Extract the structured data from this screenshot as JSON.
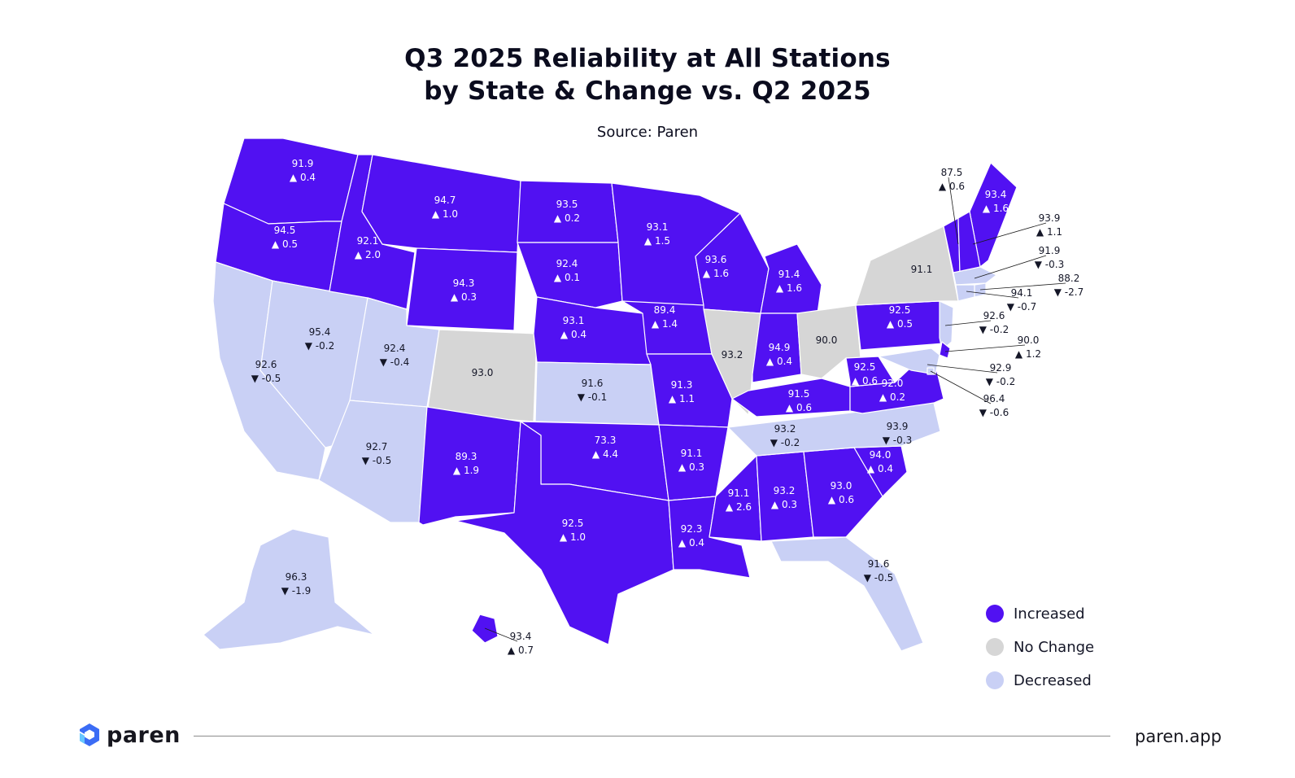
{
  "title_line1": "Q3 2025 Reliability at All Stations",
  "title_line2": "by State & Change vs. Q2 2025",
  "source": "Source: Paren",
  "colors": {
    "increased": "#5111f2",
    "no_change": "#d6d6d6",
    "decreased": "#c9d0f5",
    "text_on_dark": "#ffffff",
    "text_on_light": "#141627"
  },
  "legend": [
    {
      "label": "Increased",
      "category": "increased"
    },
    {
      "label": "No Change",
      "category": "no_change"
    },
    {
      "label": "Decreased",
      "category": "decreased"
    }
  ],
  "states": [
    {
      "name": "Washington",
      "value": "91.9",
      "change": "▲ 0.4",
      "category": "increased"
    },
    {
      "name": "Oregon",
      "value": "94.5",
      "change": "▲ 0.5",
      "category": "increased"
    },
    {
      "name": "California",
      "value": "92.6",
      "change": "▼ -0.5",
      "category": "decreased"
    },
    {
      "name": "Nevada",
      "value": "95.4",
      "change": "▼ -0.2",
      "category": "decreased"
    },
    {
      "name": "Idaho",
      "value": "92.1",
      "change": "▲ 2.0",
      "category": "increased"
    },
    {
      "name": "Montana",
      "value": "94.7",
      "change": "▲ 1.0",
      "category": "increased"
    },
    {
      "name": "Wyoming",
      "value": "94.3",
      "change": "▲ 0.3",
      "category": "increased"
    },
    {
      "name": "Utah",
      "value": "92.4",
      "change": "▼ -0.4",
      "category": "decreased"
    },
    {
      "name": "Arizona",
      "value": "92.7",
      "change": "▼ -0.5",
      "category": "decreased"
    },
    {
      "name": "Colorado",
      "value": "93.0",
      "change": "",
      "category": "no_change"
    },
    {
      "name": "New Mexico",
      "value": "89.3",
      "change": "▲ 1.9",
      "category": "increased"
    },
    {
      "name": "North Dakota",
      "value": "93.5",
      "change": "▲ 0.2",
      "category": "increased"
    },
    {
      "name": "South Dakota",
      "value": "92.4",
      "change": "▲ 0.1",
      "category": "increased"
    },
    {
      "name": "Nebraska",
      "value": "93.1",
      "change": "▲ 0.4",
      "category": "increased"
    },
    {
      "name": "Kansas",
      "value": "91.6",
      "change": "▼ -0.1",
      "category": "decreased"
    },
    {
      "name": "Oklahoma",
      "value": "73.3",
      "change": "▲ 4.4",
      "category": "increased"
    },
    {
      "name": "Texas",
      "value": "92.5",
      "change": "▲ 1.0",
      "category": "increased"
    },
    {
      "name": "Minnesota",
      "value": "93.1",
      "change": "▲ 1.5",
      "category": "increased"
    },
    {
      "name": "Iowa",
      "value": "89.4",
      "change": "▲ 1.4",
      "category": "increased"
    },
    {
      "name": "Missouri",
      "value": "91.3",
      "change": "▲ 1.1",
      "category": "increased"
    },
    {
      "name": "Arkansas",
      "value": "91.1",
      "change": "▲ 0.3",
      "category": "increased"
    },
    {
      "name": "Louisiana",
      "value": "92.3",
      "change": "▲ 0.4",
      "category": "increased"
    },
    {
      "name": "Wisconsin",
      "value": "93.6",
      "change": "▲ 1.6",
      "category": "increased"
    },
    {
      "name": "Illinois",
      "value": "93.2",
      "change": "",
      "category": "no_change"
    },
    {
      "name": "Michigan",
      "value": "91.4",
      "change": "▲ 1.6",
      "category": "increased"
    },
    {
      "name": "Indiana",
      "value": "94.9",
      "change": "▲ 0.4",
      "category": "increased"
    },
    {
      "name": "Ohio",
      "value": "90.0",
      "change": "",
      "category": "no_change"
    },
    {
      "name": "Kentucky",
      "value": "91.5",
      "change": "▲ 0.6",
      "category": "increased"
    },
    {
      "name": "Tennessee",
      "value": "93.2",
      "change": "▼ -0.2",
      "category": "decreased"
    },
    {
      "name": "Mississippi",
      "value": "91.1",
      "change": "▲ 2.6",
      "category": "increased"
    },
    {
      "name": "Alabama",
      "value": "93.2",
      "change": "▲ 0.3",
      "category": "increased"
    },
    {
      "name": "Georgia",
      "value": "93.0",
      "change": "▲ 0.6",
      "category": "increased"
    },
    {
      "name": "Florida",
      "value": "91.6",
      "change": "▼ -0.5",
      "category": "decreased"
    },
    {
      "name": "South Carolina",
      "value": "94.0",
      "change": "▲ 0.4",
      "category": "increased"
    },
    {
      "name": "North Carolina",
      "value": "93.9",
      "change": "▼ -0.3",
      "category": "decreased"
    },
    {
      "name": "Virginia",
      "value": "92.0",
      "change": "▲ 0.2",
      "category": "increased"
    },
    {
      "name": "West Virginia",
      "value": "92.5",
      "change": "▲ 0.6",
      "category": "increased"
    },
    {
      "name": "Pennsylvania",
      "value": "92.5",
      "change": "▲ 0.5",
      "category": "increased"
    },
    {
      "name": "New York",
      "value": "91.1",
      "change": "",
      "category": "no_change"
    },
    {
      "name": "Maine",
      "value": "93.4",
      "change": "▲ 1.6",
      "category": "increased"
    },
    {
      "name": "Vermont",
      "value": "87.5",
      "change": "▲ 0.6",
      "category": "increased"
    },
    {
      "name": "New Hampshire",
      "value": "93.9",
      "change": "▲ 1.1",
      "category": "increased"
    },
    {
      "name": "Massachusetts",
      "value": "91.9",
      "change": "▼ -0.3",
      "category": "decreased"
    },
    {
      "name": "Rhode Island",
      "value": "88.2",
      "change": "▼ -2.7",
      "category": "decreased"
    },
    {
      "name": "Connecticut",
      "value": "94.1",
      "change": "▼ -0.7",
      "category": "decreased"
    },
    {
      "name": "New Jersey",
      "value": "92.6",
      "change": "▼ -0.2",
      "category": "decreased"
    },
    {
      "name": "Delaware",
      "value": "90.0",
      "change": "▲ 1.2",
      "category": "increased"
    },
    {
      "name": "Maryland",
      "value": "92.9",
      "change": "▼ -0.2",
      "category": "decreased"
    },
    {
      "name": "District of Columbia",
      "value": "96.4",
      "change": "▼ -0.6",
      "category": "decreased"
    },
    {
      "name": "Alaska",
      "value": "96.3",
      "change": "▼ -1.9",
      "category": "decreased"
    },
    {
      "name": "Hawaii",
      "value": "93.4",
      "change": "▲ 0.7",
      "category": "increased"
    }
  ],
  "footer": {
    "logo_text": "paren",
    "site": "paren.app"
  }
}
